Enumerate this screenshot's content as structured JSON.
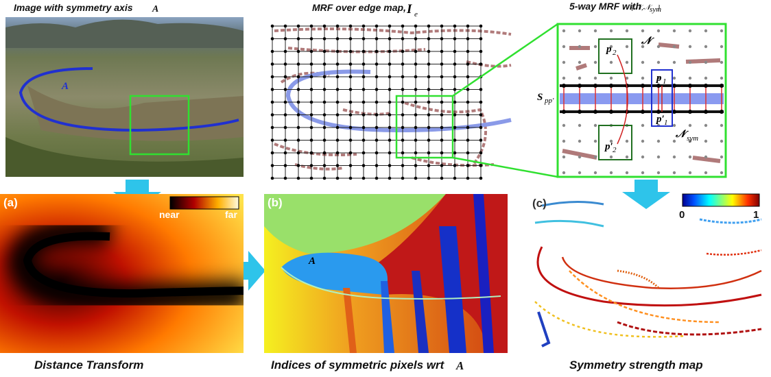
{
  "top_row": {
    "photo": {
      "title": "Image with symmetry axis",
      "symbol": "A",
      "axis_label": "A"
    },
    "edge_map": {
      "title": "MRF over edge map,",
      "symbol": "I",
      "subscript": "e"
    },
    "zoom": {
      "title": "5-way MRF with",
      "set_open": "{𝒩,𝒩",
      "set_sub": "sym",
      "set_close": "}",
      "neighborhood": "𝒩",
      "sym_neighborhood": "𝒩",
      "sym_sub": "sym",
      "p2_top": "p",
      "p2_top_sub": "2",
      "p1": "p",
      "p1_sub": "1",
      "p1_prime": "p′",
      "p1_prime_sub": "1",
      "p2_prime": "p′",
      "p2_prime_sub": "2",
      "s_label": "S",
      "s_sub": "pp′"
    }
  },
  "bottom_row": {
    "distance": {
      "label": "(a)",
      "legend_min": "near",
      "legend_max": "far",
      "caption": "Distance Transform"
    },
    "indices": {
      "label": "(b)",
      "axis_label": "A",
      "caption": "Indices of symmetric pixels wrt",
      "symbol": "A"
    },
    "strength": {
      "label": "(c)",
      "legend_min": "0",
      "legend_max": "1",
      "caption": "Symmetry strength map"
    }
  }
}
